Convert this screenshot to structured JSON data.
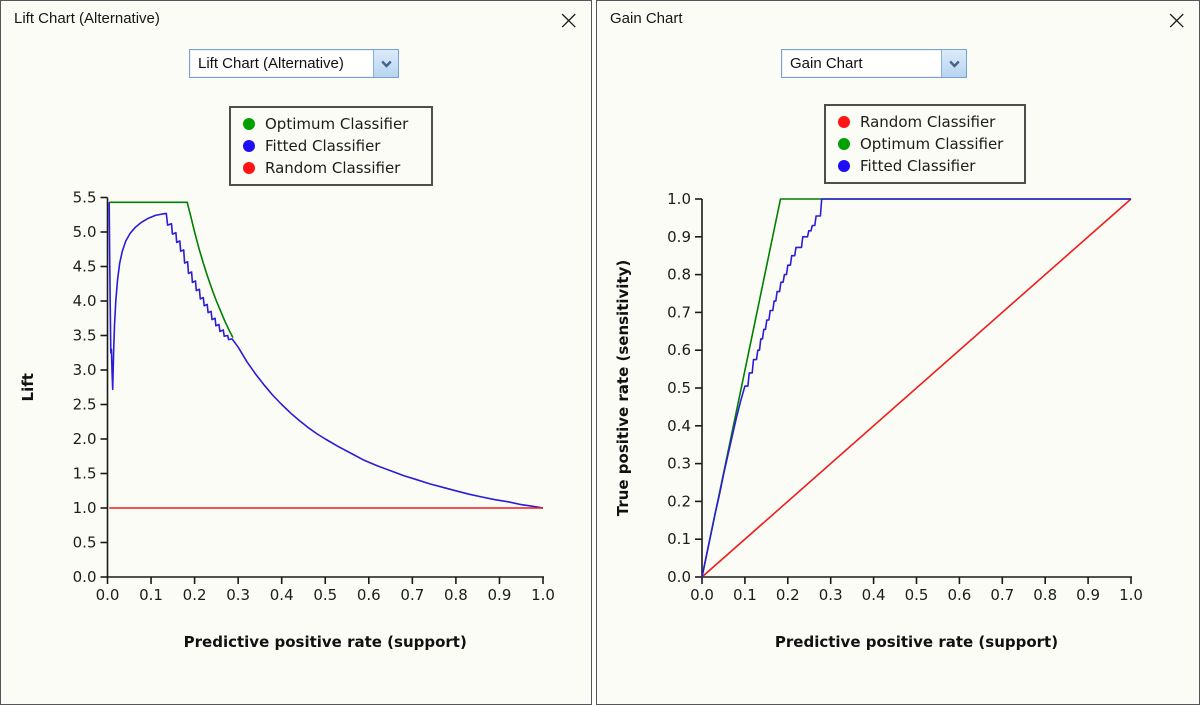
{
  "left_window": {
    "title": "Lift Chart (Alternative)",
    "close_icon": "×",
    "dropdown_value": "Lift Chart (Alternative)",
    "legend": [
      {
        "label": "Optimum Classifier",
        "color": "#00a000"
      },
      {
        "label": "Fitted Classifier",
        "color": "#1d0ef5"
      },
      {
        "label": "Random Classifier",
        "color": "#ff1414"
      }
    ],
    "chart_data": {
      "type": "line",
      "title": "",
      "xlabel": "Predictive positive rate (support)",
      "ylabel": "Lift",
      "xlim": [
        0,
        1
      ],
      "ylim": [
        0,
        5.5
      ],
      "xticks": [
        "0.0",
        "0.1",
        "0.2",
        "0.3",
        "0.4",
        "0.5",
        "0.6",
        "0.7",
        "0.8",
        "0.9",
        "1.0"
      ],
      "yticks": [
        "0.0",
        "0.5",
        "1.0",
        "1.5",
        "2.0",
        "2.5",
        "3.0",
        "3.5",
        "4.0",
        "4.5",
        "5.0",
        "5.5"
      ],
      "grid": false,
      "legend_position": "top",
      "series": [
        {
          "name": "Optimum Classifier",
          "color": "#008000",
          "points": [
            [
              0.004,
              5.43
            ],
            [
              0.183,
              5.43
            ],
            [
              0.19,
              5.26
            ],
            [
              0.2,
              5.0
            ],
            [
              0.21,
              4.76
            ],
            [
              0.22,
              4.55
            ],
            [
              0.23,
              4.35
            ],
            [
              0.24,
              4.17
            ],
            [
              0.25,
              4.0
            ],
            [
              0.26,
              3.85
            ],
            [
              0.27,
              3.7
            ],
            [
              0.28,
              3.57
            ],
            [
              0.288,
              3.47
            ]
          ]
        },
        {
          "name": "Fitted Classifier",
          "color": "#2b1cd6",
          "points": [
            [
              0.004,
              5.43
            ],
            [
              0.005,
              4.6
            ],
            [
              0.006,
              4.1
            ],
            [
              0.0075,
              3.25
            ],
            [
              0.009,
              3.3
            ],
            [
              0.0105,
              2.95
            ],
            [
              0.012,
              2.72
            ],
            [
              0.014,
              3.25
            ],
            [
              0.016,
              3.65
            ],
            [
              0.019,
              4.0
            ],
            [
              0.023,
              4.3
            ],
            [
              0.028,
              4.55
            ],
            [
              0.034,
              4.72
            ],
            [
              0.042,
              4.87
            ],
            [
              0.052,
              4.98
            ],
            [
              0.064,
              5.07
            ],
            [
              0.078,
              5.14
            ],
            [
              0.094,
              5.2
            ],
            [
              0.11,
              5.24
            ],
            [
              0.125,
              5.26
            ],
            [
              0.135,
              5.27
            ],
            [
              0.138,
              5.1
            ],
            [
              0.147,
              5.12
            ],
            [
              0.149,
              4.97
            ],
            [
              0.157,
              4.99
            ],
            [
              0.159,
              4.85
            ],
            [
              0.166,
              4.87
            ],
            [
              0.168,
              4.72
            ],
            [
              0.175,
              4.74
            ],
            [
              0.177,
              4.55
            ],
            [
              0.184,
              4.57
            ],
            [
              0.186,
              4.4
            ],
            [
              0.193,
              4.42
            ],
            [
              0.195,
              4.27
            ],
            [
              0.202,
              4.29
            ],
            [
              0.204,
              4.15
            ],
            [
              0.211,
              4.17
            ],
            [
              0.213,
              4.03
            ],
            [
              0.22,
              4.05
            ],
            [
              0.222,
              3.93
            ],
            [
              0.229,
              3.95
            ],
            [
              0.231,
              3.83
            ],
            [
              0.238,
              3.85
            ],
            [
              0.24,
              3.73
            ],
            [
              0.247,
              3.75
            ],
            [
              0.249,
              3.64
            ],
            [
              0.256,
              3.66
            ],
            [
              0.258,
              3.56
            ],
            [
              0.266,
              3.58
            ],
            [
              0.268,
              3.49
            ],
            [
              0.276,
              3.5
            ],
            [
              0.278,
              3.44
            ],
            [
              0.286,
              3.45
            ],
            [
              0.3,
              3.33
            ],
            [
              0.32,
              3.12
            ],
            [
              0.34,
              2.94
            ],
            [
              0.36,
              2.78
            ],
            [
              0.38,
              2.63
            ],
            [
              0.4,
              2.5
            ],
            [
              0.42,
              2.38
            ],
            [
              0.44,
              2.27
            ],
            [
              0.46,
              2.17
            ],
            [
              0.48,
              2.08
            ],
            [
              0.5,
              2.0
            ],
            [
              0.53,
              1.89
            ],
            [
              0.56,
              1.79
            ],
            [
              0.59,
              1.69
            ],
            [
              0.62,
              1.61
            ],
            [
              0.65,
              1.54
            ],
            [
              0.68,
              1.47
            ],
            [
              0.71,
              1.41
            ],
            [
              0.74,
              1.35
            ],
            [
              0.77,
              1.3
            ],
            [
              0.8,
              1.25
            ],
            [
              0.83,
              1.2
            ],
            [
              0.86,
              1.16
            ],
            [
              0.89,
              1.12
            ],
            [
              0.92,
              1.09
            ],
            [
              0.95,
              1.05
            ],
            [
              0.98,
              1.02
            ],
            [
              1.0,
              1.0
            ]
          ]
        },
        {
          "name": "Random Classifier",
          "color": "#ee1c1c",
          "points": [
            [
              0.004,
              1.0
            ],
            [
              1.0,
              1.0
            ]
          ]
        }
      ]
    }
  },
  "right_window": {
    "title": "Gain Chart",
    "close_icon": "×",
    "dropdown_value": "Gain Chart",
    "legend": [
      {
        "label": "Random Classifier",
        "color": "#ff1414"
      },
      {
        "label": "Optimum Classifier",
        "color": "#00a000"
      },
      {
        "label": "Fitted Classifier",
        "color": "#1d0ef5"
      }
    ],
    "chart_data": {
      "type": "line",
      "title": "",
      "xlabel": "Predictive positive rate (support)",
      "ylabel": "True positive rate (sensitivity)",
      "xlim": [
        0,
        1
      ],
      "ylim": [
        0,
        1
      ],
      "xticks": [
        "0.0",
        "0.1",
        "0.2",
        "0.3",
        "0.4",
        "0.5",
        "0.6",
        "0.7",
        "0.8",
        "0.9",
        "1.0"
      ],
      "yticks": [
        "0.0",
        "0.1",
        "0.2",
        "0.3",
        "0.4",
        "0.5",
        "0.6",
        "0.7",
        "0.8",
        "0.9",
        "1.0"
      ],
      "grid": false,
      "legend_position": "top",
      "series": [
        {
          "name": "Random Classifier",
          "color": "#ee1c1c",
          "points": [
            [
              0,
              0
            ],
            [
              1,
              1
            ]
          ]
        },
        {
          "name": "Optimum Classifier",
          "color": "#008000",
          "points": [
            [
              0,
              0
            ],
            [
              0.183,
              1.0
            ],
            [
              1.0,
              1.0
            ]
          ]
        },
        {
          "name": "Fitted Classifier",
          "color": "#2b1cd6",
          "points": [
            [
              0,
              0
            ],
            [
              0.01,
              0.055
            ],
            [
              0.02,
              0.11
            ],
            [
              0.03,
              0.165
            ],
            [
              0.04,
              0.215
            ],
            [
              0.05,
              0.27
            ],
            [
              0.06,
              0.32
            ],
            [
              0.07,
              0.37
            ],
            [
              0.08,
              0.42
            ],
            [
              0.09,
              0.465
            ],
            [
              0.1,
              0.505
            ],
            [
              0.107,
              0.505
            ],
            [
              0.11,
              0.54
            ],
            [
              0.117,
              0.54
            ],
            [
              0.12,
              0.575
            ],
            [
              0.127,
              0.575
            ],
            [
              0.13,
              0.6
            ],
            [
              0.134,
              0.6
            ],
            [
              0.137,
              0.63
            ],
            [
              0.141,
              0.63
            ],
            [
              0.144,
              0.655
            ],
            [
              0.148,
              0.655
            ],
            [
              0.151,
              0.68
            ],
            [
              0.156,
              0.68
            ],
            [
              0.159,
              0.705
            ],
            [
              0.165,
              0.705
            ],
            [
              0.168,
              0.73
            ],
            [
              0.172,
              0.73
            ],
            [
              0.175,
              0.755
            ],
            [
              0.181,
              0.755
            ],
            [
              0.184,
              0.78
            ],
            [
              0.189,
              0.78
            ],
            [
              0.192,
              0.8
            ],
            [
              0.197,
              0.8
            ],
            [
              0.2,
              0.825
            ],
            [
              0.206,
              0.825
            ],
            [
              0.209,
              0.85
            ],
            [
              0.216,
              0.85
            ],
            [
              0.219,
              0.872
            ],
            [
              0.232,
              0.872
            ],
            [
              0.235,
              0.9
            ],
            [
              0.246,
              0.9
            ],
            [
              0.249,
              0.916
            ],
            [
              0.254,
              0.916
            ],
            [
              0.257,
              0.93
            ],
            [
              0.263,
              0.93
            ],
            [
              0.266,
              0.955
            ],
            [
              0.276,
              0.955
            ],
            [
              0.279,
              1.0
            ],
            [
              1.0,
              1.0
            ]
          ]
        }
      ]
    }
  }
}
